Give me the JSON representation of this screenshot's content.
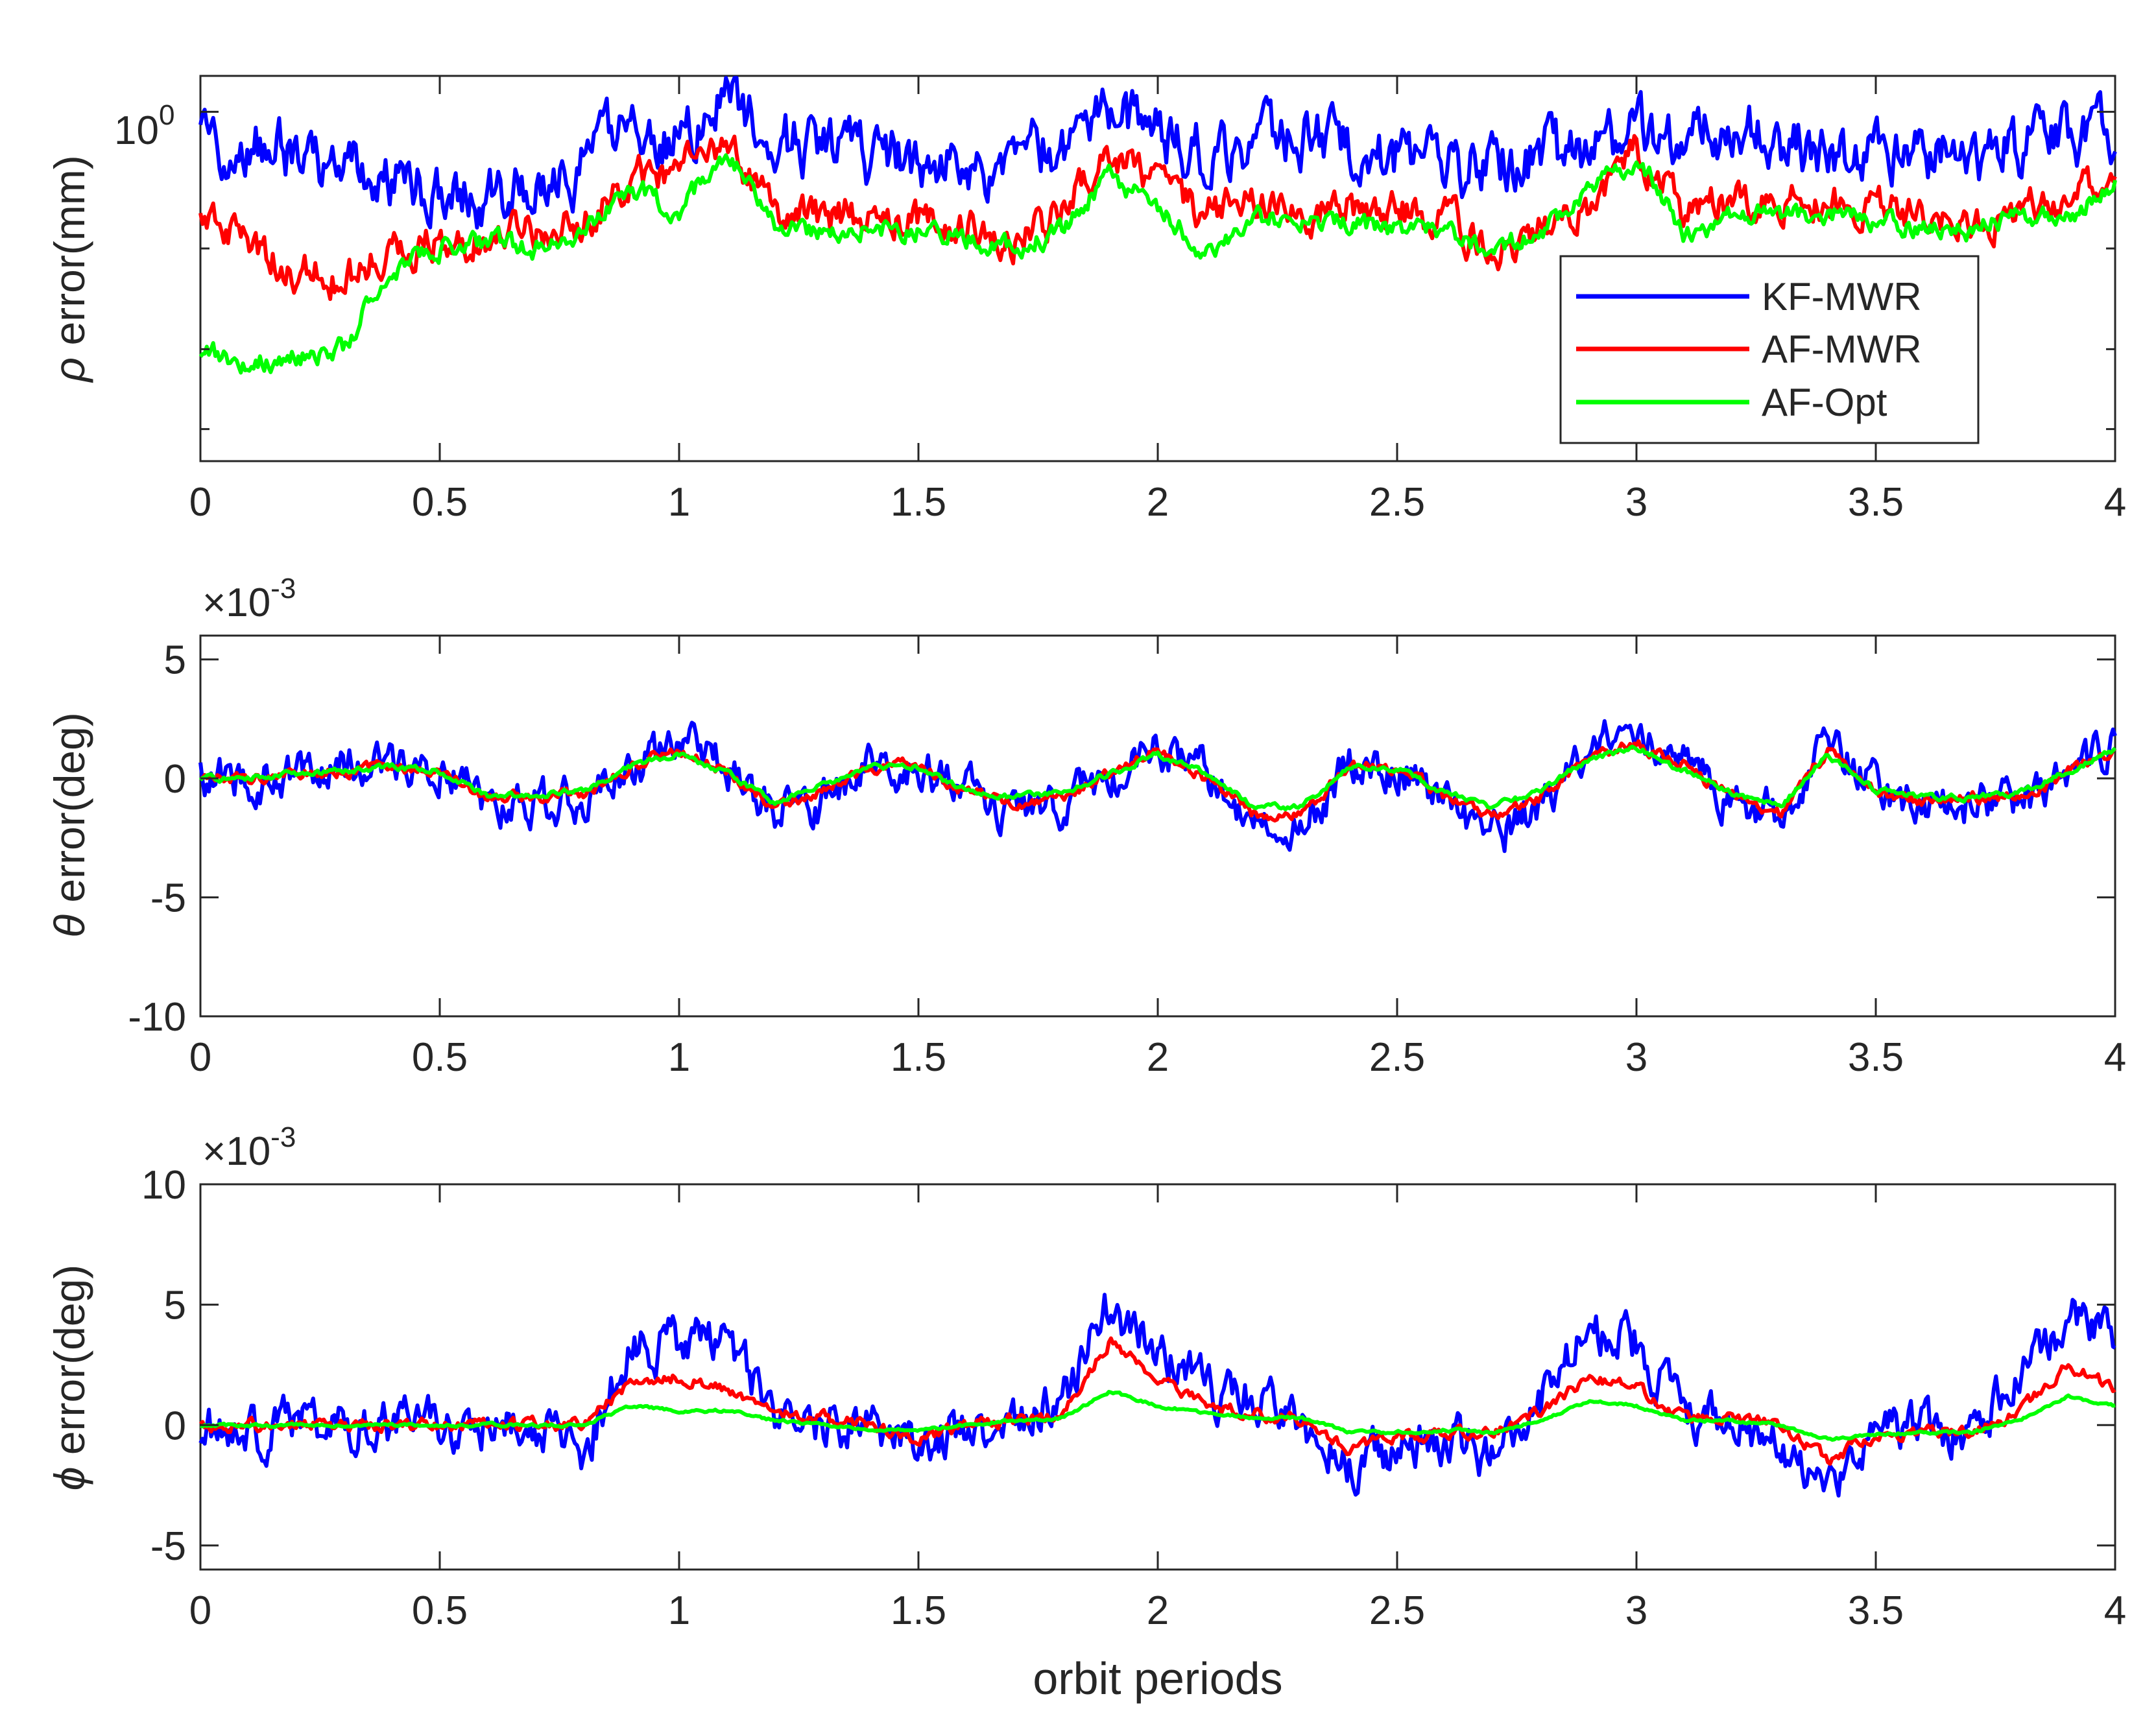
{
  "figure": {
    "xlabel": "orbit periods"
  },
  "legend": [
    {
      "name": "KF-MWR",
      "color": "#0000ff"
    },
    {
      "name": "AF-MWR",
      "color": "#ff0000"
    },
    {
      "name": "AF-Opt",
      "color": "#00ff00"
    }
  ],
  "chart_data": [
    {
      "type": "line",
      "panel": "rho",
      "ylabel_symbol": "ρ",
      "ylabel_text": " error(mm)",
      "yscale": "log",
      "xlim": [
        0,
        4
      ],
      "ylim": [
        0.17,
        1.2
      ],
      "xticks": [
        "0",
        "0.5",
        "1",
        "1.5",
        "2",
        "2.5",
        "3",
        "3.5",
        "4"
      ],
      "ytick_label": {
        "base": "10",
        "exp": "0"
      },
      "x": [
        0,
        0.1,
        0.2,
        0.3,
        0.4,
        0.5,
        0.6,
        0.7,
        0.8,
        0.9,
        1.0,
        1.1,
        1.2,
        1.3,
        1.4,
        1.5,
        1.6,
        1.7,
        1.8,
        1.9,
        2.0,
        2.1,
        2.2,
        2.3,
        2.4,
        2.5,
        2.6,
        2.7,
        2.8,
        2.9,
        3.0,
        3.1,
        3.2,
        3.3,
        3.4,
        3.5,
        3.6,
        3.7,
        3.8,
        3.9,
        4.0
      ],
      "series": [
        {
          "name": "KF-MWR",
          "color": "#0000ff",
          "noise": 0.14,
          "values": [
            0.85,
            0.85,
            0.8,
            0.75,
            0.7,
            0.68,
            0.65,
            0.66,
            0.75,
            0.97,
            0.85,
            1.1,
            0.85,
            0.85,
            0.8,
            0.78,
            0.77,
            0.75,
            0.85,
            0.95,
            0.9,
            0.8,
            0.88,
            0.9,
            0.82,
            0.8,
            0.78,
            0.75,
            0.8,
            0.78,
            0.95,
            0.88,
            0.9,
            0.85,
            0.83,
            0.8,
            0.82,
            0.78,
            0.85,
            0.9,
            0.88
          ]
        },
        {
          "name": "AF-MWR",
          "color": "#ff0000",
          "noise": 0.09,
          "values": [
            0.6,
            0.5,
            0.45,
            0.42,
            0.5,
            0.52,
            0.53,
            0.54,
            0.58,
            0.7,
            0.75,
            0.8,
            0.62,
            0.58,
            0.6,
            0.57,
            0.55,
            0.52,
            0.6,
            0.83,
            0.7,
            0.6,
            0.62,
            0.6,
            0.62,
            0.6,
            0.58,
            0.5,
            0.55,
            0.6,
            0.82,
            0.6,
            0.63,
            0.65,
            0.62,
            0.62,
            0.6,
            0.55,
            0.6,
            0.65,
            0.7
          ]
        },
        {
          "name": "AF-Opt",
          "color": "#00ff00",
          "noise": 0.05,
          "values": [
            0.3,
            0.28,
            0.29,
            0.3,
            0.45,
            0.5,
            0.52,
            0.5,
            0.55,
            0.68,
            0.6,
            0.8,
            0.55,
            0.55,
            0.56,
            0.55,
            0.53,
            0.5,
            0.55,
            0.72,
            0.62,
            0.48,
            0.58,
            0.58,
            0.57,
            0.55,
            0.55,
            0.5,
            0.55,
            0.65,
            0.8,
            0.52,
            0.6,
            0.6,
            0.6,
            0.58,
            0.56,
            0.54,
            0.6,
            0.58,
            0.7
          ]
        }
      ]
    },
    {
      "type": "line",
      "panel": "theta",
      "ylabel_symbol": "θ",
      "ylabel_text": " error(deg)",
      "multiplier": {
        "base": "×10",
        "exp": "-3"
      },
      "xlim": [
        0,
        4
      ],
      "ylim": [
        -10,
        6
      ],
      "xticks": [
        "0",
        "0.5",
        "1",
        "1.5",
        "2",
        "2.5",
        "3",
        "3.5",
        "4"
      ],
      "yticks": [
        5,
        0,
        -5,
        -10
      ],
      "ytick_labels": [
        "5",
        "0",
        "-5",
        "-10"
      ],
      "x": [
        0,
        0.1,
        0.2,
        0.3,
        0.4,
        0.5,
        0.6,
        0.7,
        0.8,
        0.9,
        1.0,
        1.1,
        1.2,
        1.3,
        1.4,
        1.5,
        1.6,
        1.7,
        1.8,
        1.9,
        2.0,
        2.1,
        2.2,
        2.3,
        2.4,
        2.5,
        2.6,
        2.7,
        2.8,
        2.9,
        3.0,
        3.1,
        3.2,
        3.3,
        3.4,
        3.5,
        3.6,
        3.7,
        3.8,
        3.9,
        4.0
      ],
      "series": [
        {
          "name": "KF-MWR",
          "color": "#0000ff",
          "noise": 1.8,
          "values": [
            0,
            0,
            0.3,
            0.5,
            0.8,
            0.5,
            -1,
            -1,
            -0.8,
            0.5,
            1.5,
            0.5,
            -1.5,
            -1,
            0.5,
            0.5,
            -0.5,
            -1.5,
            -1,
            0,
            1.5,
            0.2,
            -2,
            -2,
            0.5,
            0.5,
            -1,
            -2.5,
            -1,
            1,
            2,
            0.5,
            -1,
            -1.5,
            1.5,
            -0.5,
            -1.5,
            -1,
            -1,
            0,
            1.5
          ]
        },
        {
          "name": "AF-MWR",
          "color": "#ff0000",
          "noise": 0.5,
          "values": [
            0,
            0,
            0.2,
            0.3,
            0.5,
            0.3,
            -0.8,
            -0.8,
            -0.6,
            0.5,
            1.2,
            0.3,
            -1.2,
            -0.6,
            0.5,
            0.5,
            -0.5,
            -1,
            -0.8,
            0.2,
            1.2,
            0,
            -1.5,
            -1.5,
            0.5,
            0.5,
            -0.8,
            -1.5,
            -0.8,
            0.8,
            1.5,
            0.5,
            -0.8,
            -1.5,
            1.2,
            -0.5,
            -1,
            -0.8,
            -0.8,
            0.2,
            1.2
          ]
        },
        {
          "name": "AF-Opt",
          "color": "#00ff00",
          "noise": 0.25,
          "values": [
            0,
            0,
            0.2,
            0.3,
            0.5,
            0.3,
            -0.7,
            -0.7,
            -0.5,
            0.5,
            1,
            0.2,
            -1,
            -0.3,
            0.5,
            0.5,
            -0.5,
            -0.8,
            -0.6,
            0.2,
            1,
            0.2,
            -1.2,
            -1.2,
            0.5,
            0.4,
            -0.6,
            -1.2,
            -0.5,
            0.8,
            1.3,
            0.3,
            -0.6,
            -1.2,
            1,
            -0.5,
            -0.8,
            -0.8,
            -0.6,
            0.3,
            1.2
          ]
        }
      ]
    },
    {
      "type": "line",
      "panel": "phi",
      "ylabel_symbol": "ϕ",
      "ylabel_text": " error(deg)",
      "multiplier": {
        "base": "×10",
        "exp": "-3"
      },
      "xlim": [
        0,
        4
      ],
      "ylim": [
        -6,
        10
      ],
      "xticks": [
        "0",
        "0.5",
        "1",
        "1.5",
        "2",
        "2.5",
        "3",
        "3.5",
        "4"
      ],
      "yticks": [
        10,
        5,
        0,
        -5
      ],
      "ytick_labels": [
        "10",
        "5",
        "0",
        "-5"
      ],
      "x": [
        0,
        0.1,
        0.2,
        0.3,
        0.4,
        0.5,
        0.6,
        0.7,
        0.8,
        0.9,
        1.0,
        1.1,
        1.2,
        1.3,
        1.4,
        1.5,
        1.6,
        1.7,
        1.8,
        1.9,
        2.0,
        2.1,
        2.2,
        2.3,
        2.4,
        2.5,
        2.6,
        2.7,
        2.8,
        2.9,
        3.0,
        3.1,
        3.2,
        3.3,
        3.4,
        3.5,
        3.6,
        3.7,
        3.8,
        3.9,
        4.0
      ],
      "series": [
        {
          "name": "KF-MWR",
          "color": "#0000ff",
          "noise": 2.0,
          "values": [
            0,
            -0.5,
            0,
            0,
            0,
            0,
            0,
            0,
            -1,
            3,
            3.5,
            3.5,
            0.5,
            0,
            0,
            -1,
            0,
            0,
            1,
            5,
            3,
            1.5,
            1,
            0,
            -1.5,
            -1,
            -0.5,
            -1.5,
            1,
            4,
            3.5,
            0.5,
            0,
            -1,
            -2.5,
            -0.5,
            0,
            -0.5,
            2,
            4.5,
            3.5
          ]
        },
        {
          "name": "AF-MWR",
          "color": "#ff0000",
          "noise": 0.5,
          "values": [
            0,
            0,
            0,
            0,
            0,
            0,
            0,
            0,
            0,
            1.8,
            2,
            1.5,
            0.5,
            0.3,
            0,
            -0.6,
            0,
            0.2,
            0.5,
            3.5,
            2,
            0.8,
            0.5,
            0.3,
            -1,
            -0.5,
            -0.3,
            -0.3,
            0.5,
            2,
            1.5,
            0.3,
            0.3,
            0,
            -1.5,
            -0.4,
            -0.3,
            -0.3,
            0.5,
            2.5,
            1.5
          ]
        },
        {
          "name": "AF-Opt",
          "color": "#00ff00",
          "noise": 0.12,
          "values": [
            0,
            0,
            0,
            0,
            0,
            0,
            0,
            0,
            0,
            0.8,
            0.6,
            0.6,
            0.2,
            0,
            -0.2,
            -0.2,
            0,
            0.2,
            0.3,
            1.4,
            0.8,
            0.5,
            0.3,
            0.3,
            -0.3,
            -0.3,
            -0.2,
            -0.3,
            0.2,
            1,
            0.8,
            0.2,
            0.2,
            0,
            -0.6,
            -0.4,
            -0.3,
            -0.3,
            0.2,
            1.2,
            0.8
          ]
        }
      ]
    }
  ]
}
